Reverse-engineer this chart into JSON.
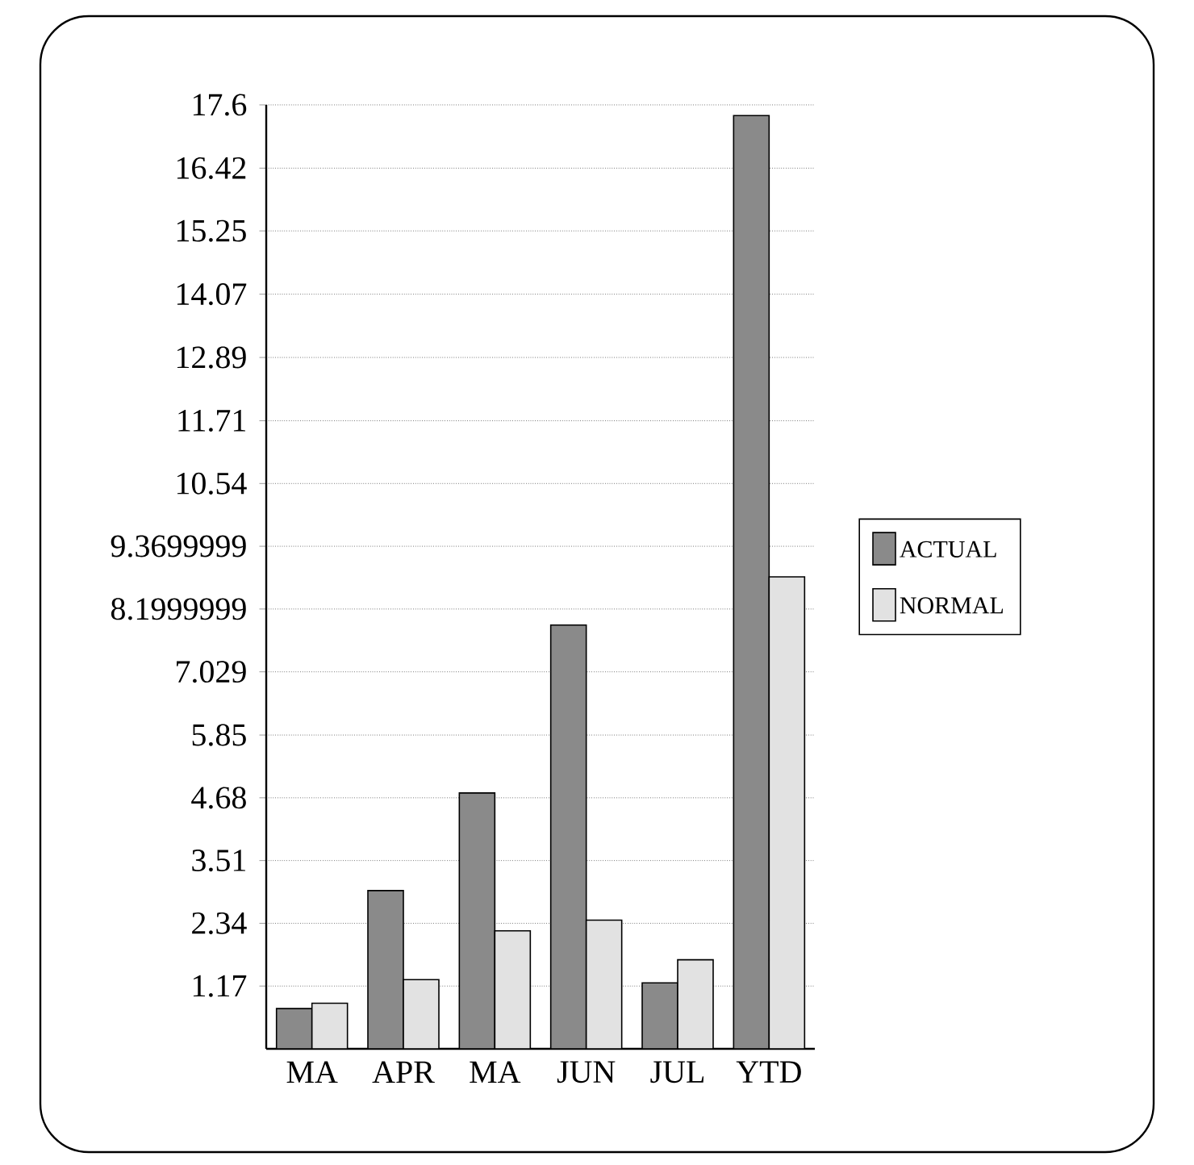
{
  "chart_data": {
    "type": "bar",
    "categories": [
      "MA",
      "APR",
      "MA",
      "JUN",
      "JUL",
      "YTD"
    ],
    "series": [
      {
        "name": "ACTUAL",
        "color": "#8a8a8a",
        "values": [
          0.75,
          2.95,
          4.77,
          7.9,
          1.23,
          17.4
        ]
      },
      {
        "name": "NORMAL",
        "color": "#e2e2e2",
        "values": [
          0.85,
          1.29,
          2.2,
          2.4,
          1.66,
          8.8
        ]
      }
    ],
    "ylim": [
      0,
      17.6
    ],
    "yticks": [
      1.17,
      2.34,
      3.51,
      4.68,
      5.85,
      7.029,
      8.1999999,
      9.3699999,
      10.54,
      11.71,
      12.89,
      14.07,
      15.25,
      16.42,
      17.6
    ],
    "grid": "y",
    "legend": "right"
  }
}
